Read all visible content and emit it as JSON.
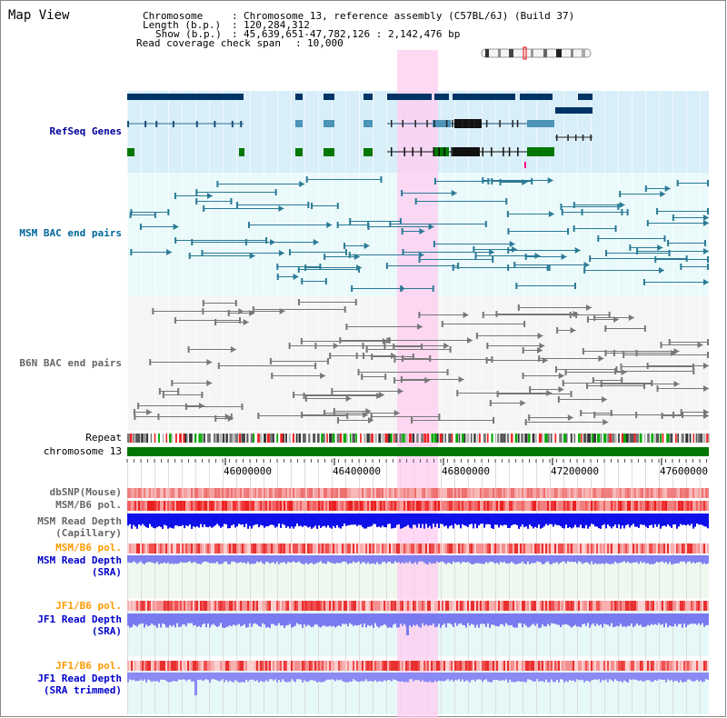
{
  "title": "Map View",
  "header": {
    "chromosome_key": "Chromosome",
    "chromosome_val": "Chromosome 13, reference assembly (C57BL/6J) (Build 37)",
    "length_key": "Length (b.p.)",
    "length_val": "120,284,312",
    "show_key": "Show (b.p.)",
    "show_val": "45,639,651-47,782,126 : 2,142,476 bp",
    "coverage_key": "Read coverage check span",
    "coverage_val": "10,000",
    "sep": ":"
  },
  "tracks": {
    "refseq": "RefSeq Genes",
    "msm_bac": "MSM BAC end pairs",
    "b6n_bac": "B6N BAC end pairs",
    "repeat": "Repeat",
    "chromosome": "chromosome 13",
    "dbsnp": "dbSNP(Mouse)",
    "msm_b6_pol1": "MSM/B6 pol.",
    "msm_depth_cap_1": "MSM Read Depth",
    "msm_depth_cap_2": "(Capillary)",
    "msm_b6_pol2": "MSM/B6 pol.",
    "msm_depth_sra_1": "MSM Read Depth",
    "msm_depth_sra_2": "(SRA)",
    "jf1_b6_pol1": "JF1/B6 pol.",
    "jf1_depth_sra_1": "JF1 Read Depth",
    "jf1_depth_sra_2": "(SRA)",
    "jf1_b6_pol2": "JF1/B6 pol.",
    "jf1_depth_trim_1": "JF1 Read Depth",
    "jf1_depth_trim_2": "(SRA trimmed)"
  },
  "axis": {
    "ticks": [
      "46000000",
      "46400000",
      "46800000",
      "47200000",
      "47600000"
    ]
  },
  "colors": {
    "refseq_label": "#000099",
    "msm_label": "#006699",
    "b6n_label": "#666666",
    "pol_orange": "#ff9900",
    "depth_blue": "#0000cc",
    "highlight": "#ffccf0",
    "gene_dark": "#003366",
    "gene_mid": "#4d94b8",
    "gene_green": "#007700",
    "chrom_green": "#007700"
  }
}
